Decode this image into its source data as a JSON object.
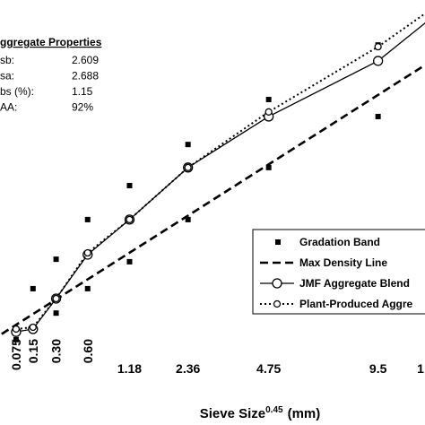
{
  "chart_data": {
    "type": "line",
    "xlabel": "Sieve Size",
    "xlabel_sup": "0.45",
    "xlabel_unit": "(mm)",
    "x_power": 0.45,
    "xlim": [
      0.029,
      12.1
    ],
    "ylim": [
      0,
      100
    ],
    "xticks": [
      0.075,
      0.15,
      {
        "value": 0.3,
        "label": "0.30"
      },
      {
        "value": 0.6,
        "label": "0.60"
      },
      1.18,
      2.36,
      4.75,
      9.5,
      {
        "value": 12.5,
        "label": "1"
      }
    ],
    "grid": false,
    "legend": "right",
    "series": [
      {
        "name": "Gradation Band",
        "kind": "scatter",
        "color": "#000000",
        "x": [
          0.075,
          0.15,
          0.3,
          0.3,
          0.6,
          0.6,
          1.18,
          1.18,
          2.36,
          2.36,
          4.75,
          4.75,
          9.5,
          9.5
        ],
        "values": [
          4.1,
          18.5,
          26.8,
          11.6,
          38,
          18.5,
          47.6,
          26.1,
          59.2,
          38,
          71.9,
          52.7,
          87.3,
          67.1
        ]
      },
      {
        "name": "Max Density Line",
        "kind": "dashed",
        "color": "#000000",
        "x": [
          0,
          19
        ],
        "values": [
          0,
          100
        ]
      },
      {
        "name": "JMF Aggregate Blend",
        "kind": "solid",
        "color": "#000000",
        "x": [
          0.075,
          0.15,
          0.3,
          0.6,
          1.18,
          2.36,
          4.75,
          9.5,
          12.5
        ],
        "values": [
          6.3,
          7.1,
          15.7,
          28.1,
          38,
          52.7,
          67.1,
          82.8,
          95
        ]
      },
      {
        "name": "Plant-Produced Aggre",
        "kind": "dotted",
        "color": "#000000",
        "x": [
          0.075,
          0.15,
          0.3,
          0.6,
          1.18,
          2.36,
          4.75,
          9.5,
          12.5
        ],
        "values": [
          7.1,
          7.6,
          15.7,
          28.6,
          38,
          52.7,
          68.4,
          86.8,
          97.5
        ]
      }
    ],
    "properties": {
      "title": "ggregate Properties",
      "rows": [
        [
          "sb:",
          "2.609"
        ],
        [
          "sa:",
          "2.688"
        ],
        [
          "bs (%):",
          "1.15"
        ],
        [
          "AA:",
          "92%"
        ]
      ]
    }
  }
}
